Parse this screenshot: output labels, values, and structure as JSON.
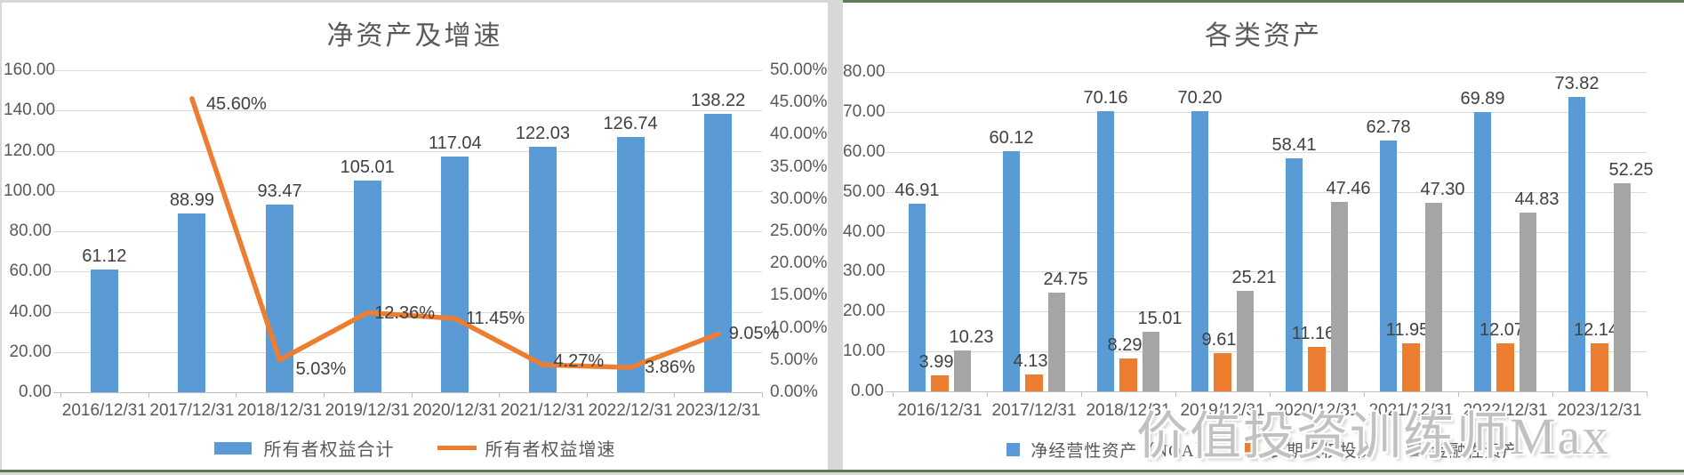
{
  "watermark": "价值投资训练师Max",
  "chart_data": [
    {
      "type": "combo-bar-line",
      "title": "净资产及增速",
      "categories": [
        "2016/12/31",
        "2017/12/31",
        "2018/12/31",
        "2019/12/31",
        "2020/12/31",
        "2021/12/31",
        "2022/12/31",
        "2023/12/31"
      ],
      "series": [
        {
          "name": "所有者权益合计",
          "type": "bar",
          "axis": "left",
          "color": "#5B9BD5",
          "values": [
            61.12,
            88.99,
            93.47,
            105.01,
            117.04,
            122.03,
            126.74,
            138.22
          ],
          "labels": [
            "61.12",
            "88.99",
            "93.47",
            "105.01",
            "117.04",
            "122.03",
            "126.74",
            "138.22"
          ]
        },
        {
          "name": "所有者权益增速",
          "type": "line",
          "axis": "right",
          "color": "#ED7D31",
          "values": [
            null,
            45.6,
            5.03,
            12.36,
            11.45,
            4.27,
            3.86,
            9.05
          ],
          "labels": [
            null,
            "45.60%",
            "5.03%",
            "12.36%",
            "11.45%",
            "4.27%",
            "3.86%",
            "9.05%"
          ]
        }
      ],
      "left_axis": {
        "min": 0,
        "max": 160,
        "step": 20,
        "tick_labels": [
          "160.00",
          "140.00",
          "120.00",
          "100.00",
          "80.00",
          "60.00",
          "40.00",
          "20.00",
          "0.00"
        ]
      },
      "right_axis": {
        "min": 0,
        "max": 50,
        "step": 5,
        "tick_labels": [
          "50.00%",
          "45.00%",
          "40.00%",
          "35.00%",
          "30.00%",
          "25.00%",
          "20.00%",
          "15.00%",
          "10.00%",
          "5.00%",
          "0.00%"
        ]
      },
      "grid": true,
      "legend_position": "bottom"
    },
    {
      "type": "bar",
      "title": "各类资产",
      "categories": [
        "2016/12/31",
        "2017/12/31",
        "2018/12/31",
        "2019/12/31",
        "2020/12/31",
        "2021/12/31",
        "2022/12/31",
        "2023/12/31"
      ],
      "series": [
        {
          "name": "净经营性资产（NOA）",
          "color": "#5B9BD5",
          "values": [
            46.91,
            60.12,
            70.16,
            70.2,
            58.41,
            62.78,
            69.89,
            73.82
          ],
          "labels": [
            "46.91",
            "60.12",
            "70.16",
            "70.20",
            "58.41",
            "62.78",
            "69.89",
            "73.82"
          ]
        },
        {
          "name": "长期股权投资",
          "color": "#ED7D31",
          "values": [
            3.99,
            4.13,
            8.29,
            9.61,
            11.16,
            11.95,
            12.07,
            12.14
          ],
          "labels": [
            "3.99",
            "4.13",
            "8.29",
            "9.61",
            "11.16",
            "11.95",
            "12.07",
            "12.14"
          ]
        },
        {
          "name": "金融性资产",
          "color": "#A5A5A5",
          "values": [
            10.23,
            24.75,
            15.01,
            25.21,
            47.46,
            47.3,
            44.83,
            52.25
          ],
          "labels": [
            "10.23",
            "24.75",
            "15.01",
            "25.21",
            "47.46",
            "47.30",
            "44.83",
            "52.25"
          ]
        }
      ],
      "left_axis": {
        "min": 0,
        "max": 80,
        "step": 10,
        "tick_labels": [
          "80.00",
          "70.00",
          "60.00",
          "50.00",
          "40.00",
          "30.00",
          "20.00",
          "10.00",
          "0.00"
        ]
      },
      "grid": true,
      "legend_position": "bottom"
    }
  ],
  "colors": {
    "bar_blue": "#5B9BD5",
    "line_orange": "#ED7D31",
    "bar_gray": "#A5A5A5",
    "axis_text": "#595959",
    "data_label_text": "#404040",
    "gridline": "#D9D9D9",
    "panel_rule_green": "#5D7B55",
    "page_background": "#D8D8D8"
  }
}
